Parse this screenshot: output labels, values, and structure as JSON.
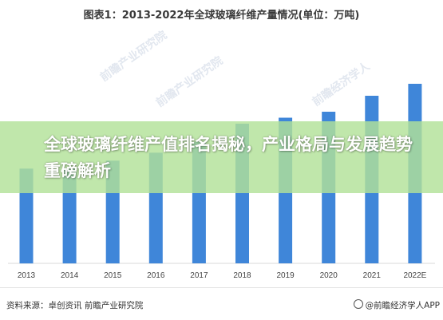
{
  "chart_data": {
    "type": "bar",
    "title": "图表1：2013-2022年全球玻璃纤维产量情况(单位：万吨)",
    "categories": [
      "2013",
      "2014",
      "2015",
      "2016",
      "2017",
      "2018",
      "2019",
      "2020",
      "2021",
      "2022E"
    ],
    "values": [
      475,
      475,
      515,
      555,
      610,
      700,
      730,
      760,
      840,
      900
    ],
    "ylim": [
      0,
      1000
    ],
    "grid": false,
    "bar_color": "#3f86d9"
  },
  "watermarks": [
    "前瞻产业研究院",
    "前瞻产业研究院",
    "前瞻经济学人"
  ],
  "banner": {
    "text": "全球玻璃纤维产值排名揭秘，产业格局与发展趋势重磅解析",
    "color": "#b2e298"
  },
  "footer": {
    "source": "资料来源：卓创资讯 前瞻产业研究院",
    "brand": "@前瞻经济学人APP"
  }
}
